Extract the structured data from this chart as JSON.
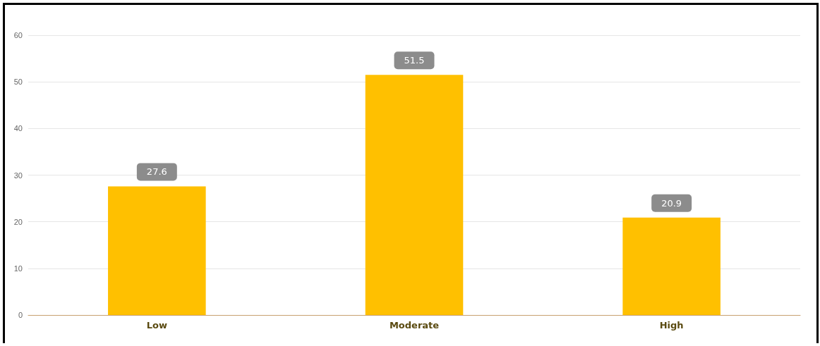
{
  "chart_data": {
    "type": "bar",
    "categories": [
      "Low",
      "Moderate",
      "High"
    ],
    "values": [
      27.6,
      51.5,
      20.9
    ],
    "color": "#ffc000",
    "ylim": [
      0,
      60
    ],
    "yticks": [
      0,
      10,
      20,
      30,
      40,
      50,
      60
    ],
    "grid": "y",
    "data_labels": true
  }
}
